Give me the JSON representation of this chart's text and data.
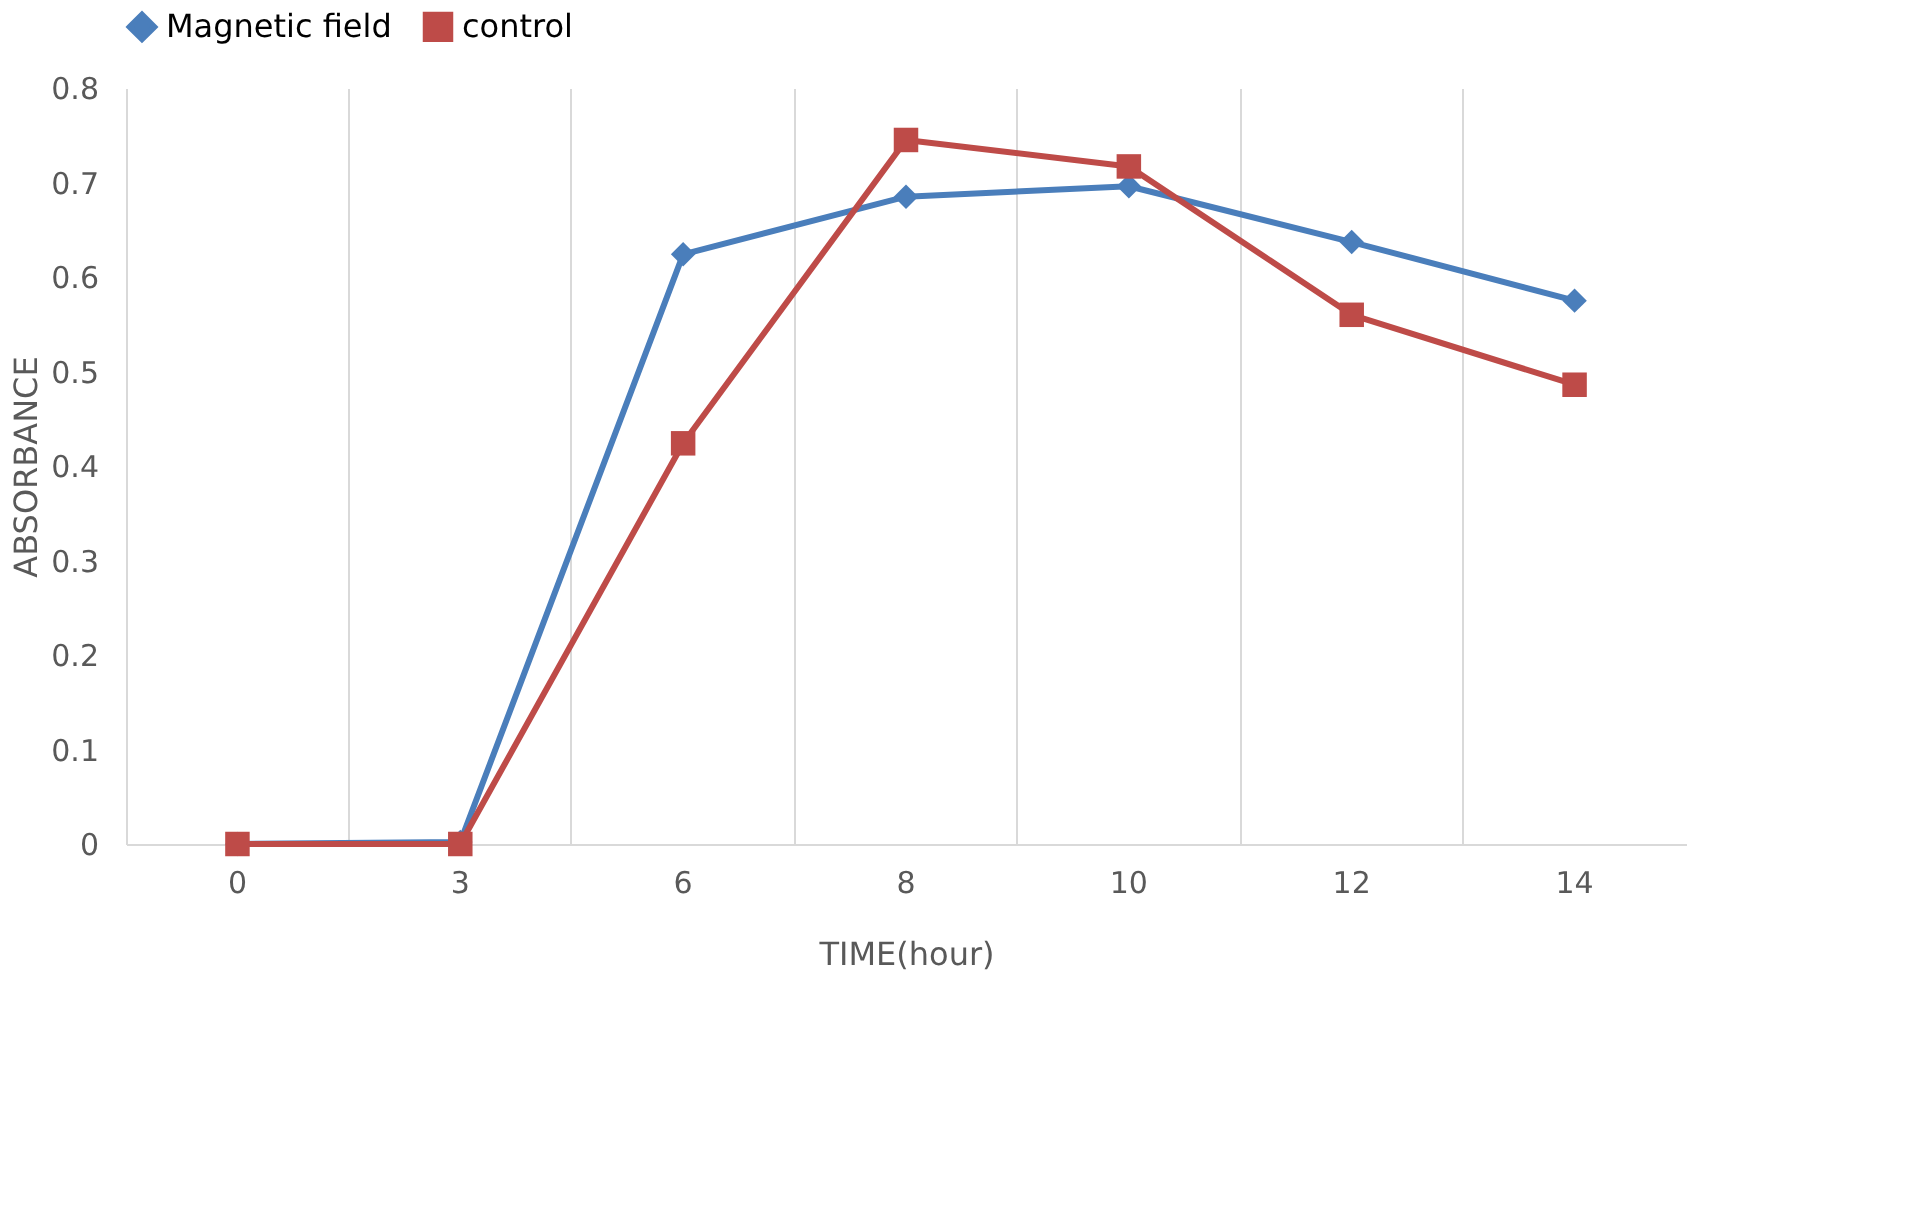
{
  "chart_data": {
    "type": "line",
    "xlabel": "TIME(hour)",
    "ylabel": "ABSORBANCE",
    "categories": [
      "0",
      "3",
      "6",
      "8",
      "10",
      "12",
      "14"
    ],
    "series": [
      {
        "name": "Magnetic field",
        "color": "#4a7ebb",
        "marker": "diamond",
        "values": [
          0,
          0.002,
          0.624,
          0.685,
          0.696,
          0.637,
          0.575
        ]
      },
      {
        "name": "control",
        "color": "#be4b48",
        "marker": "square",
        "values": [
          0,
          0,
          0.424,
          0.745,
          0.717,
          0.56,
          0.486
        ]
      }
    ],
    "ylim": [
      0,
      0.8
    ],
    "yticks": [
      0,
      0.1,
      0.2,
      0.3,
      0.4,
      0.5,
      0.6,
      0.7,
      0.8
    ],
    "grid": "x",
    "legend": "top",
    "line_style": "solid"
  }
}
